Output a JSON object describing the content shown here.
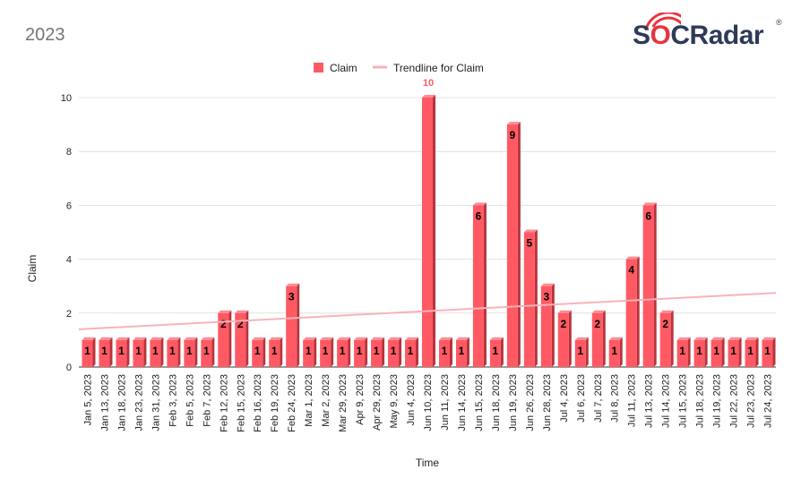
{
  "page": {
    "title": "2023"
  },
  "logo": {
    "text_s": "S",
    "text_o": "O",
    "text_rest": "CRadar",
    "reg": "®"
  },
  "colors": {
    "bar": "#ff5964",
    "bar_side": "#b8333c",
    "bar_top": "#ff8a92",
    "trendline": "#f7b3ba",
    "grid": "#e0e0e0",
    "label_top": "#ff5964"
  },
  "chart_data": {
    "type": "bar",
    "title": "",
    "xlabel": "Time",
    "ylabel": "Claim",
    "ylim": [
      0,
      10
    ],
    "yticks": [
      0,
      2,
      4,
      6,
      8,
      10
    ],
    "grid": true,
    "legend_position": "top",
    "categories": [
      "Jan 5, 2023",
      "Jan 13, 2023",
      "Jan 18, 2023",
      "Jan 23, 2023",
      "Jan 31, 2023",
      "Feb 3, 2023",
      "Feb 5, 2023",
      "Feb 7, 2023",
      "Feb 12, 2023",
      "Feb 15, 2023",
      "Feb 16, 2023",
      "Feb 19, 2023",
      "Feb 24, 2023",
      "Mar 1, 2023",
      "Mar 2, 2023",
      "Mar 29, 2023",
      "Apr 9, 2023",
      "Apr 29, 2023",
      "May 9, 2023",
      "Jun 4, 2023",
      "Jun 10, 2023",
      "Jun 11, 2023",
      "Jun 14, 2023",
      "Jun 15, 2023",
      "Jun 18, 2023",
      "Jun 19, 2023",
      "Jun 26, 2023",
      "Jun 28, 2023",
      "Jul 4, 2023",
      "Jul 6, 2023",
      "Jul 7, 2023",
      "Jul 8, 2023",
      "Jul 11, 2023",
      "Jul 13, 2023",
      "Jul 14, 2023",
      "Jul 15, 2023",
      "Jul 18, 2023",
      "Jul 19, 2023",
      "Jul 22, 2023",
      "Jul 23, 2023",
      "Jul 24, 2023"
    ],
    "series": [
      {
        "name": "Claim",
        "values": [
          1,
          1,
          1,
          1,
          1,
          1,
          1,
          1,
          2,
          2,
          1,
          1,
          3,
          1,
          1,
          1,
          1,
          1,
          1,
          1,
          10,
          1,
          1,
          6,
          1,
          9,
          5,
          3,
          2,
          1,
          2,
          1,
          4,
          6,
          2,
          1,
          1,
          1,
          1,
          1,
          1
        ]
      }
    ],
    "trendline": {
      "name": "Trendline for Claim",
      "start": 1.4,
      "end": 2.75
    }
  }
}
